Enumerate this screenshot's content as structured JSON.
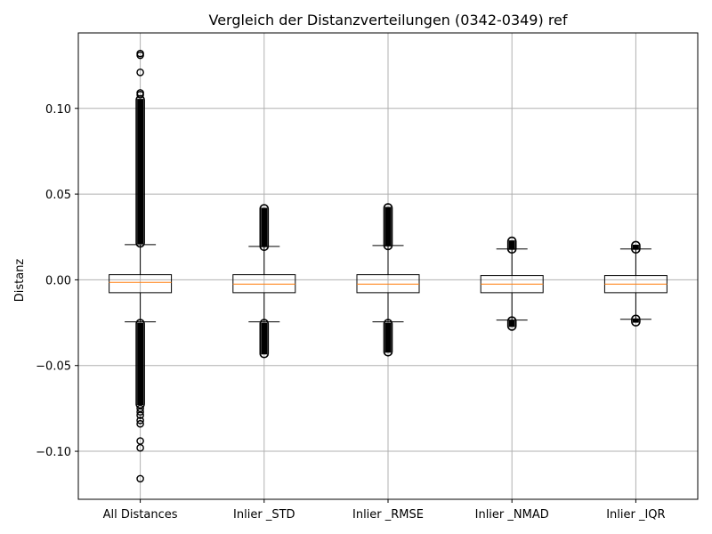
{
  "chart_data": {
    "type": "box",
    "title": "Vergleich der Distanzverteilungen (0342-0349) ref",
    "xlabel": "",
    "ylabel": "Distanz",
    "ylim": [
      -0.128,
      0.144
    ],
    "yticks": [
      -0.1,
      -0.05,
      0.0,
      0.05,
      0.1
    ],
    "ytick_labels": [
      "−0.10",
      "−0.05",
      "0.00",
      "0.05",
      "0.10"
    ],
    "grid": true,
    "colors": {
      "box": "#000000",
      "median": "#ff7f0e",
      "grid": "#b0b0b0",
      "flier": "#000000"
    },
    "categories": [
      "All Distances",
      "Inlier _STD",
      "Inlier _RMSE",
      "Inlier _NMAD",
      "Inlier _IQR"
    ],
    "boxes": [
      {
        "label": "All Distances",
        "whisker_low": -0.0245,
        "q1": -0.0075,
        "median": -0.0015,
        "q3": 0.003,
        "whisker_high": 0.0205,
        "flier_ranges": [
          [
            -0.073,
            -0.025
          ],
          [
            0.021,
            0.1055
          ]
        ],
        "outliers": [
          -0.116,
          -0.098,
          -0.094,
          -0.084,
          -0.082,
          -0.079,
          -0.077,
          -0.075,
          0.108,
          0.109,
          0.121,
          0.131,
          0.132
        ]
      },
      {
        "label": "Inlier _STD",
        "whisker_low": -0.0245,
        "q1": -0.0075,
        "median": -0.0025,
        "q3": 0.003,
        "whisker_high": 0.0195,
        "flier_ranges": [
          [
            -0.0435,
            -0.025
          ],
          [
            0.019,
            0.042
          ]
        ],
        "outliers": []
      },
      {
        "label": "Inlier _RMSE",
        "whisker_low": -0.0245,
        "q1": -0.0075,
        "median": -0.0025,
        "q3": 0.003,
        "whisker_high": 0.02,
        "flier_ranges": [
          [
            -0.0425,
            -0.025
          ],
          [
            0.0195,
            0.0425
          ]
        ],
        "outliers": []
      },
      {
        "label": "Inlier _NMAD",
        "whisker_low": -0.0235,
        "q1": -0.0075,
        "median": -0.0025,
        "q3": 0.0025,
        "whisker_high": 0.018,
        "flier_ranges": [
          [
            -0.0275,
            -0.0235
          ],
          [
            0.0175,
            0.023
          ]
        ],
        "outliers": []
      },
      {
        "label": "Inlier _IQR",
        "whisker_low": -0.023,
        "q1": -0.0075,
        "median": -0.0025,
        "q3": 0.0025,
        "whisker_high": 0.018,
        "flier_ranges": [
          [
            -0.025,
            -0.0225
          ],
          [
            0.0175,
            0.0205
          ]
        ],
        "outliers": []
      }
    ]
  }
}
